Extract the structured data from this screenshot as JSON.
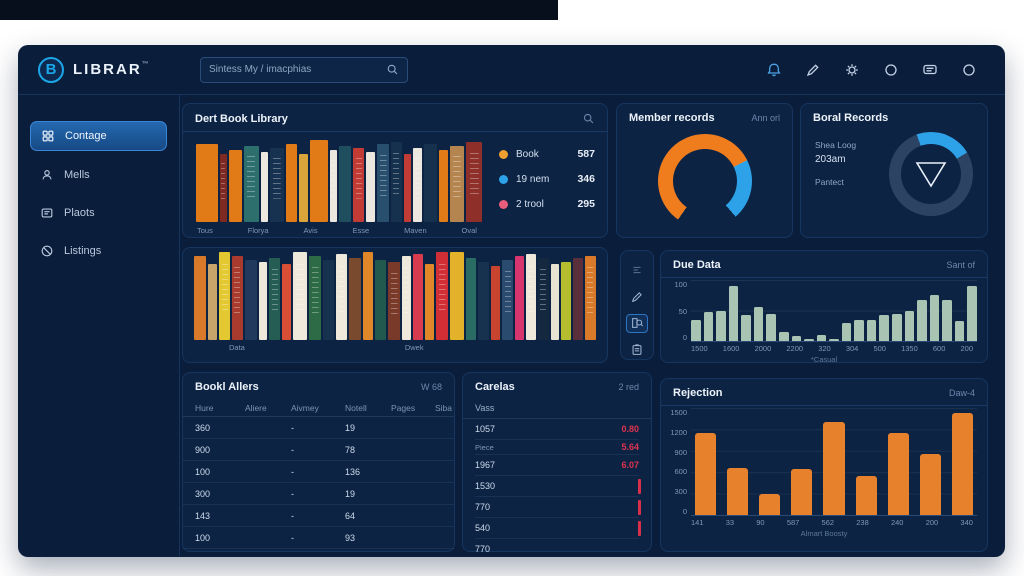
{
  "topbar": {
    "logo": "LIBRAR",
    "logo_badge": "B",
    "logo_suffix": "™",
    "search_placeholder": "Sintess My / imacphias",
    "icons": [
      "bell-icon",
      "pen-icon",
      "gear-icon",
      "circle-icon",
      "chat-lines-icon",
      "user-circle-icon"
    ]
  },
  "sidebar": {
    "items": [
      {
        "label": "Contage",
        "icon": "grid-icon",
        "active": true
      },
      {
        "label": "Mells",
        "icon": "person-icon",
        "active": false
      },
      {
        "label": "Plaots",
        "icon": "card-icon",
        "active": false
      },
      {
        "label": "Listings",
        "icon": "slash-circle-icon",
        "active": false
      }
    ]
  },
  "library_panel": {
    "title": "Dert Book Library",
    "shelf_labels": [
      "Tous",
      "Florya",
      "Avis",
      "Esse",
      "Maven",
      "Oval"
    ],
    "legend": [
      {
        "label": "Book",
        "value": "587",
        "color": "#f0a030"
      },
      {
        "label": "19 nem",
        "value": "346",
        "color": "#2ea2e8"
      },
      {
        "label": "2 trool",
        "value": "295",
        "color": "#e85d7a"
      }
    ],
    "books": [
      {
        "c": "#e07b17",
        "w": 26,
        "h": 78
      },
      {
        "c": "#7e2a22",
        "w": 9,
        "h": 68,
        "d": 1
      },
      {
        "c": "#e07b17",
        "w": 15,
        "h": 72
      },
      {
        "c": "#2c6f6d",
        "w": 19,
        "h": 76,
        "d": 1
      },
      {
        "c": "#ece8df",
        "w": 8,
        "h": 70
      },
      {
        "c": "#173250",
        "w": 17,
        "h": 74,
        "d": 1
      },
      {
        "c": "#e07b17",
        "w": 13,
        "h": 78
      },
      {
        "c": "#d9a53a",
        "w": 11,
        "h": 68
      },
      {
        "c": "#e07b17",
        "w": 21,
        "h": 82
      },
      {
        "c": "#ece8df",
        "w": 9,
        "h": 72,
        "d": 1
      },
      {
        "c": "#1f4f5e",
        "w": 15,
        "h": 76
      },
      {
        "c": "#c23b35",
        "w": 13,
        "h": 74,
        "d": 1
      },
      {
        "c": "#ece8df",
        "w": 10,
        "h": 70
      },
      {
        "c": "#28506e",
        "w": 15,
        "h": 78,
        "d": 1
      },
      {
        "c": "#16314e",
        "w": 13,
        "h": 80,
        "d": 1
      },
      {
        "c": "#c23b35",
        "w": 8,
        "h": 68
      },
      {
        "c": "#ece8df",
        "w": 12,
        "h": 74,
        "d": 1
      },
      {
        "c": "#16314e",
        "w": 15,
        "h": 78
      },
      {
        "c": "#e07b17",
        "w": 11,
        "h": 72
      },
      {
        "c": "#b5854f",
        "w": 17,
        "h": 76,
        "d": 1
      },
      {
        "c": "#8e2f2a",
        "w": 19,
        "h": 80,
        "d": 1
      }
    ]
  },
  "member_panel": {
    "title": "Member records",
    "link": "Ann orl"
  },
  "boral_panel": {
    "title": "Boral Records",
    "lines": [
      "Shea Loog",
      "203am",
      "Pantect"
    ]
  },
  "shelf_panel": {
    "captions": [
      "Data",
      "Dwek"
    ],
    "books": [
      {
        "c": "#d97a2a",
        "w": 13,
        "h": 84
      },
      {
        "c": "#c8a46a",
        "w": 10,
        "h": 76
      },
      {
        "c": "#e3c832",
        "w": 12,
        "h": 88,
        "d": 1
      },
      {
        "c": "#a93a2e",
        "w": 11,
        "h": 84,
        "d": 1
      },
      {
        "c": "#21395c",
        "w": 13,
        "h": 80
      },
      {
        "c": "#efe9dc",
        "w": 9,
        "h": 78
      },
      {
        "c": "#255c54",
        "w": 12,
        "h": 82,
        "d": 1
      },
      {
        "c": "#d94f35",
        "w": 10,
        "h": 76
      },
      {
        "c": "#efe9dc",
        "w": 15,
        "h": 88,
        "d": 1
      },
      {
        "c": "#2d6b46",
        "w": 13,
        "h": 84,
        "d": 1
      },
      {
        "c": "#17324f",
        "w": 11,
        "h": 80
      },
      {
        "c": "#efe9dc",
        "w": 12,
        "h": 86,
        "d": 1
      },
      {
        "c": "#7a4a2e",
        "w": 13,
        "h": 82
      },
      {
        "c": "#e0872a",
        "w": 11,
        "h": 88
      },
      {
        "c": "#21594f",
        "w": 12,
        "h": 80
      },
      {
        "c": "#7a3a2a",
        "w": 13,
        "h": 78,
        "d": 1
      },
      {
        "c": "#efe9dc",
        "w": 10,
        "h": 84,
        "d": 1
      },
      {
        "c": "#d93b4e",
        "w": 11,
        "h": 86
      },
      {
        "c": "#e0872a",
        "w": 9,
        "h": 76
      },
      {
        "c": "#d12f35",
        "w": 13,
        "h": 88,
        "d": 1
      },
      {
        "c": "#e3b22a",
        "w": 15,
        "h": 88
      },
      {
        "c": "#2a6b63",
        "w": 11,
        "h": 82
      },
      {
        "c": "#17324f",
        "w": 12,
        "h": 78
      },
      {
        "c": "#c8442e",
        "w": 10,
        "h": 74
      },
      {
        "c": "#2a4a6e",
        "w": 12,
        "h": 80,
        "d": 1
      },
      {
        "c": "#d6356e",
        "w": 9,
        "h": 84
      },
      {
        "c": "#efe9dc",
        "w": 11,
        "h": 86,
        "d": 1
      },
      {
        "c": "#14283f",
        "w": 12,
        "h": 82,
        "d": 1
      },
      {
        "c": "#e8e2d2",
        "w": 9,
        "h": 76
      },
      {
        "c": "#b5bd2e",
        "w": 10,
        "h": 78
      },
      {
        "c": "#5a2e3a",
        "w": 11,
        "h": 82
      },
      {
        "c": "#d97a2a",
        "w": 12,
        "h": 84,
        "d": 1
      }
    ]
  },
  "toolstrip": {
    "icons": [
      "lines-icon",
      "pen-icon",
      "book-search-icon",
      "clipboard-icon"
    ],
    "selected": "book-search-icon"
  },
  "due_panel": {
    "link": "Sant of"
  },
  "alerts_panel": {
    "title": "Bookl Allers",
    "link": "W 68",
    "headers": [
      "Hure",
      "Aliere",
      "Aivmey",
      "Notell",
      "Pages",
      "Siba"
    ],
    "rows": [
      [
        "360",
        "",
        "-",
        "19",
        "",
        ""
      ],
      [
        "900",
        "",
        "-",
        "78",
        "",
        ""
      ],
      [
        "100",
        "",
        "-",
        "136",
        "",
        ""
      ],
      [
        "300",
        "",
        "-",
        "19",
        "",
        ""
      ],
      [
        "143",
        "",
        "-",
        "64",
        "",
        ""
      ],
      [
        "100",
        "",
        "-",
        "93",
        "",
        ""
      ]
    ]
  },
  "carelas_panel": {
    "title": "Carelas",
    "link": "2 red",
    "subheader": "Vass",
    "rows": [
      {
        "label": "1057",
        "value": "0.80"
      },
      {
        "label": "Piece",
        "value": "5.64",
        "small": true
      },
      {
        "label": "1967",
        "value": "6.07"
      },
      {
        "label": "1530",
        "tick": true
      },
      {
        "label": "770",
        "tick": true
      },
      {
        "label": "540",
        "tick": true
      },
      {
        "label": "770"
      }
    ]
  },
  "rejection_panel": {
    "link": "Daw-4"
  },
  "accent_colors": {
    "orange": "#ef7d1e",
    "blue": "#2ea2e8",
    "pink": "#e85d7a",
    "red": "#e0334e",
    "sage": "#a9c4b2",
    "cyan_logo": "#1ba6e8"
  },
  "chart_data": [
    {
      "type": "bar",
      "title": "Due Data",
      "values": [
        35,
        47,
        49,
        90,
        42,
        55,
        45,
        15,
        8,
        4,
        10,
        3,
        30,
        35,
        35,
        43,
        45,
        50,
        67,
        75,
        67,
        33,
        90
      ],
      "categories": [
        "1500",
        "1600",
        "2000",
        "2200",
        "320",
        "304",
        "500",
        "1350",
        "600",
        "200"
      ],
      "y_ticks": [
        "100",
        "50",
        "0"
      ],
      "ylim": [
        0,
        100
      ],
      "color": "#a9c4b2",
      "caption": "*Casual",
      "grid": "horizontal"
    },
    {
      "type": "bar",
      "title": "Rejection",
      "values": [
        1150,
        660,
        290,
        640,
        1300,
        540,
        1150,
        860,
        1430
      ],
      "categories": [
        "141",
        "33",
        "90",
        "587",
        "562",
        "238",
        "240",
        "200",
        "340"
      ],
      "y_ticks": [
        "1500",
        "1200",
        "900",
        "600",
        "300",
        "0"
      ],
      "ylim": [
        0,
        1500
      ],
      "color": "#e8812b",
      "xlabel": "Almart Boosty",
      "grid": "horizontal"
    },
    {
      "type": "pie",
      "title": "Member records",
      "slices": [
        {
          "label": "orange-segment",
          "value": 58,
          "color": "#ef7d1e"
        },
        {
          "label": "blue-segment",
          "value": 21,
          "color": "#2ea2e8"
        },
        {
          "label": "gap",
          "value": 21,
          "color": "transparent"
        }
      ]
    },
    {
      "type": "pie",
      "title": "Boral Records",
      "slices": [
        {
          "label": "blue-segment",
          "value": 22,
          "color": "#2ea2e8"
        },
        {
          "label": "track",
          "value": 78,
          "color": "#2c4364"
        }
      ]
    }
  ]
}
